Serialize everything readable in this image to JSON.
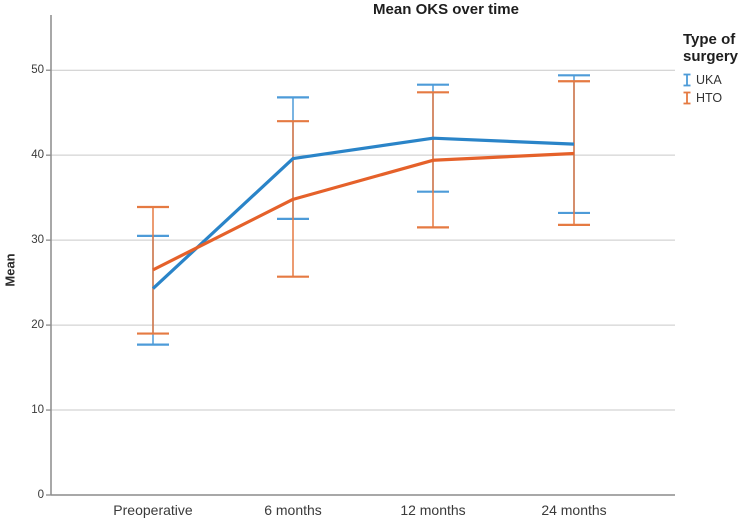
{
  "chart_data": {
    "type": "line",
    "title": "Mean OKS over time",
    "ylabel": "Mean",
    "xlabel": "",
    "categories": [
      "Preoperative",
      "6 months",
      "12 months",
      "24 months"
    ],
    "series": [
      {
        "name": "UKA",
        "color": "#2a84c8",
        "errorbar_color": "#4d9bd8",
        "values": [
          24.3,
          39.6,
          42.0,
          41.3
        ],
        "ci_low": [
          17.7,
          32.5,
          35.7,
          33.2
        ],
        "ci_high": [
          30.5,
          46.8,
          48.3,
          49.4
        ]
      },
      {
        "name": "HTO",
        "color": "#e5612a",
        "errorbar_color": "#e57a42",
        "values": [
          26.5,
          34.8,
          39.4,
          40.2
        ],
        "ci_low": [
          19.0,
          25.7,
          31.5,
          31.8
        ],
        "ci_high": [
          33.9,
          44.0,
          47.4,
          48.7
        ]
      }
    ],
    "ylim": [
      0,
      56.5
    ],
    "yticks": [
      0,
      10,
      20,
      30,
      40,
      50
    ],
    "grid": true,
    "legend_title": "Type of surgery",
    "legend_position": "right",
    "colors": {
      "axis": "#8c8c8c",
      "grid": "#c9c9c9",
      "tick_text": "#3a3a3a",
      "background": "#ffffff"
    }
  }
}
